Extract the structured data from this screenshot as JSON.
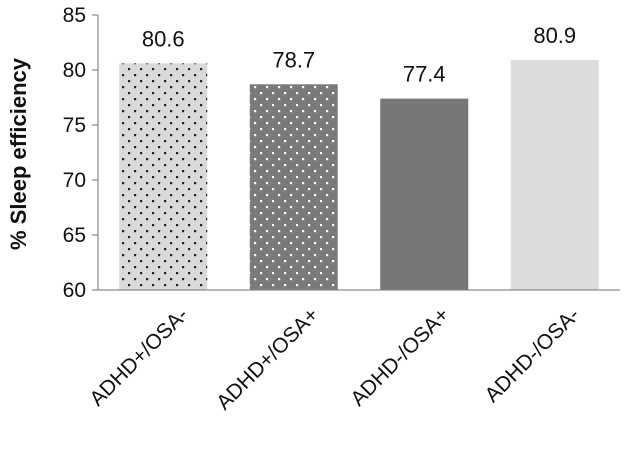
{
  "chart_data": {
    "type": "bar",
    "categories": [
      "ADHD+/OSA-",
      "ADHD+/OSA+",
      "ADHD-/OSA+",
      "ADHD-/OSA-"
    ],
    "values": [
      80.6,
      78.7,
      77.4,
      80.9
    ],
    "data_labels": [
      "80.6",
      "78.7",
      "77.4",
      "80.9"
    ],
    "title": "",
    "xlabel": "",
    "ylabel": "% Sleep efficiency",
    "ylim": [
      60,
      85
    ],
    "yticks": [
      60,
      65,
      70,
      75,
      80,
      85
    ],
    "grid": false,
    "legend": "none",
    "bar_fills": [
      "dots-light",
      "dots-dark",
      "solid-dark",
      "solid-light"
    ],
    "colors": {
      "light_bg": "#d9d9d9",
      "light_dot": "#222222",
      "dark_bg": "#7a7a7a",
      "dark_dot": "#ffffff",
      "solid_dark": "#777777",
      "solid_light": "#dcdcdc",
      "axis": "#8a8a8a"
    }
  }
}
